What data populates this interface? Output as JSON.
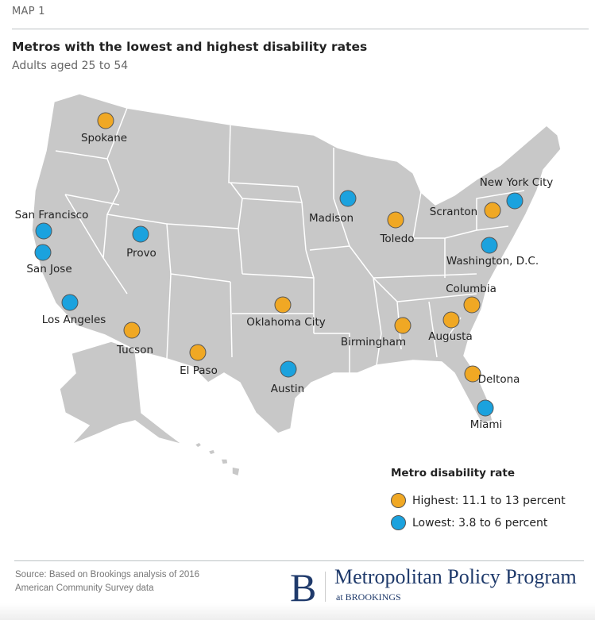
{
  "header": {
    "kicker": "MAP 1",
    "title": "Metros with the lowest and highest disability rates",
    "subtitle": "Adults aged 25 to 54"
  },
  "colors": {
    "highest": "#F0A824",
    "lowest": "#1BA2DE",
    "land": "#C8C8C8",
    "borders": "#FFFFFF"
  },
  "metros": [
    {
      "name": "Spokane",
      "group": "highest"
    },
    {
      "name": "San Francisco",
      "group": "lowest"
    },
    {
      "name": "San Jose",
      "group": "lowest"
    },
    {
      "name": "Provo",
      "group": "lowest"
    },
    {
      "name": "Los Angeles",
      "group": "lowest"
    },
    {
      "name": "Tucson",
      "group": "highest"
    },
    {
      "name": "El Paso",
      "group": "highest"
    },
    {
      "name": "Oklahoma City",
      "group": "highest"
    },
    {
      "name": "Austin",
      "group": "lowest"
    },
    {
      "name": "Madison",
      "group": "lowest"
    },
    {
      "name": "Toledo",
      "group": "highest"
    },
    {
      "name": "Birmingham",
      "group": "highest"
    },
    {
      "name": "Augusta",
      "group": "highest"
    },
    {
      "name": "Columbia",
      "group": "highest"
    },
    {
      "name": "Deltona",
      "group": "highest"
    },
    {
      "name": "Miami",
      "group": "lowest"
    },
    {
      "name": "Scranton",
      "group": "highest"
    },
    {
      "name": "New York City",
      "group": "lowest"
    },
    {
      "name": "Washington, D.C.",
      "group": "lowest"
    }
  ],
  "legend": {
    "title": "Metro disability rate",
    "highest": "Highest: 11.1 to 13 percent",
    "lowest": "Lowest: 3.8 to 6 percent"
  },
  "footer": {
    "source_line1": "Source: Based on Brookings analysis of 2016",
    "source_line2": "American Community Survey data",
    "logo_letter": "B",
    "logo_name": "Metropolitan Policy Program",
    "logo_sub": "at BROOKINGS"
  }
}
